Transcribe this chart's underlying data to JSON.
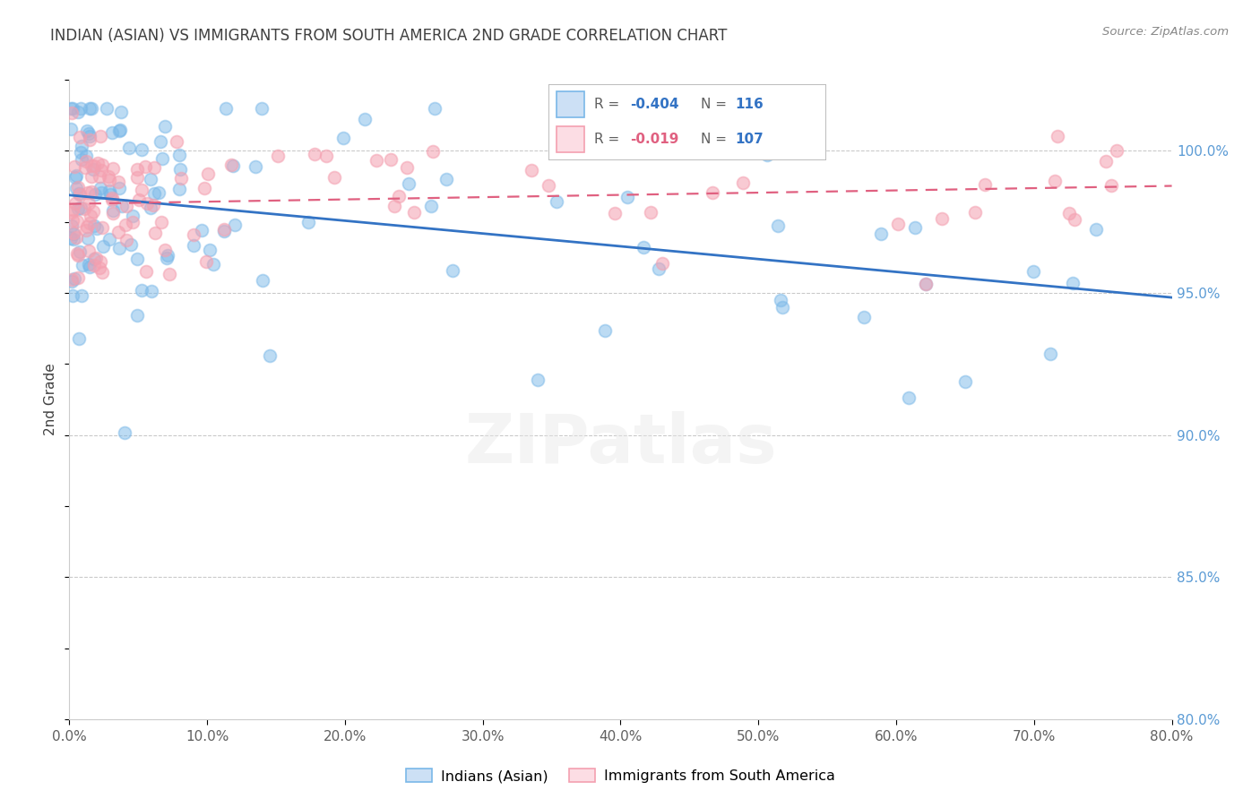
{
  "title": "INDIAN (ASIAN) VS IMMIGRANTS FROM SOUTH AMERICA 2ND GRADE CORRELATION CHART",
  "source": "Source: ZipAtlas.com",
  "xlabel_vals": [
    0.0,
    10.0,
    20.0,
    30.0,
    40.0,
    50.0,
    60.0,
    70.0,
    80.0
  ],
  "ylabel": "2nd Grade",
  "ylabel_vals": [
    80.0,
    85.0,
    90.0,
    95.0,
    100.0
  ],
  "xlim": [
    0.0,
    80.0
  ],
  "ylim": [
    80.0,
    102.5
  ],
  "blue_label": "Indians (Asian)",
  "pink_label": "Immigrants from South America",
  "blue_R": -0.404,
  "blue_N": 116,
  "pink_R": -0.019,
  "pink_N": 107,
  "blue_color": "#7ab8e8",
  "pink_color": "#f4a0b0",
  "blue_line_color": "#3373c4",
  "pink_line_color": "#e06080",
  "background_color": "#ffffff",
  "grid_color": "#c8c8c8",
  "title_color": "#404040",
  "axis_label_color": "#404040",
  "right_tick_color": "#5b9bd5",
  "bottom_tick_color": "#606060",
  "legend_blue_fill": "#cce0f5",
  "legend_pink_fill": "#fcdde4"
}
